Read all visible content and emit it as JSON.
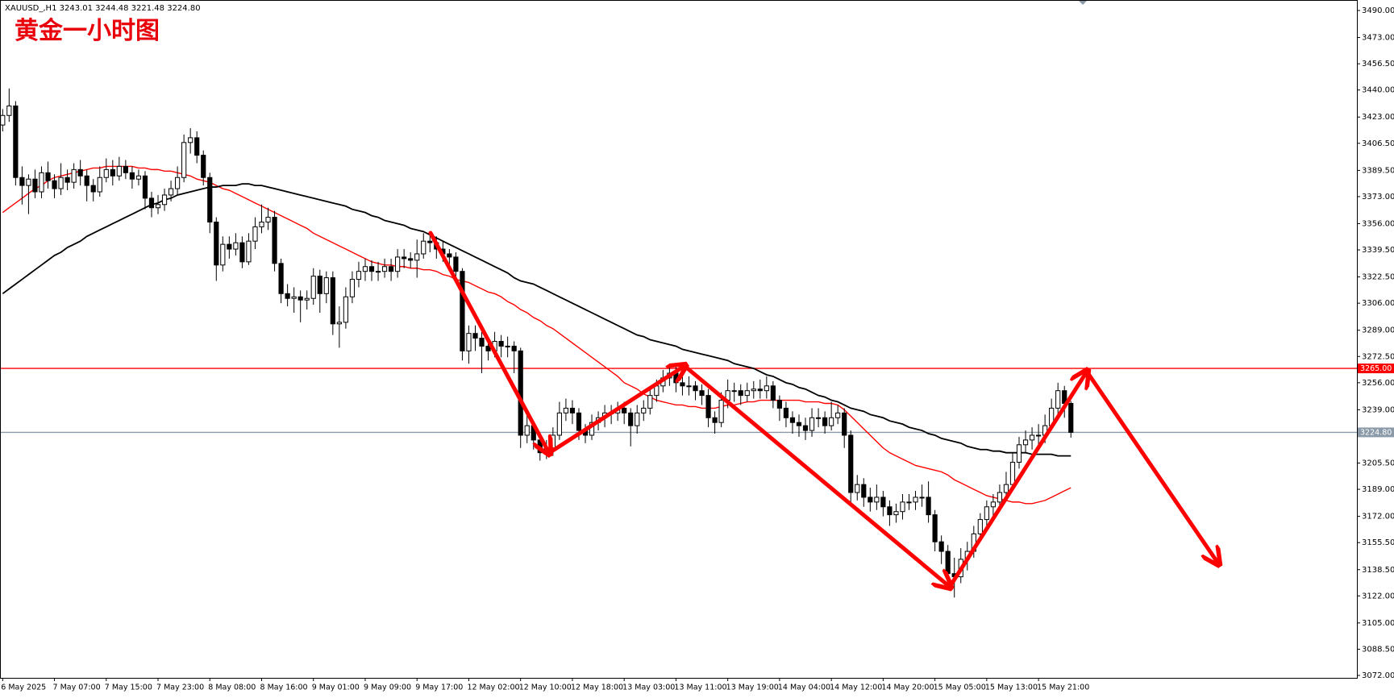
{
  "chart_data": {
    "type": "candlestick",
    "header": "XAUUSD_,H1  3243.01 3244.48 3221.48 3224.80",
    "annotation": "黄金一小时图",
    "categories": [
      "6 May 2025",
      null,
      null,
      null,
      null,
      null,
      null,
      null,
      "7 May 07:00",
      null,
      null,
      null,
      null,
      null,
      null,
      null,
      "7 May 15:00",
      null,
      null,
      null,
      null,
      null,
      null,
      null,
      "7 May 23:00",
      null,
      null,
      null,
      null,
      null,
      null,
      null,
      "8 May 08:00",
      null,
      null,
      null,
      null,
      null,
      null,
      null,
      "8 May 16:00",
      null,
      null,
      null,
      null,
      null,
      null,
      null,
      "9 May 01:00",
      null,
      null,
      null,
      null,
      null,
      null,
      null,
      "9 May 09:00",
      null,
      null,
      null,
      null,
      null,
      null,
      null,
      "9 May 17:00",
      null,
      null,
      null,
      null,
      null,
      null,
      null,
      "12 May 02:00",
      null,
      null,
      null,
      null,
      null,
      null,
      null,
      "12 May 10:00",
      null,
      null,
      null,
      null,
      null,
      null,
      null,
      "12 May 18:00",
      null,
      null,
      null,
      null,
      null,
      null,
      null,
      "13 May 03:00",
      null,
      null,
      null,
      null,
      null,
      null,
      null,
      "13 May 11:00",
      null,
      null,
      null,
      null,
      null,
      null,
      null,
      "13 May 19:00",
      null,
      null,
      null,
      null,
      null,
      null,
      null,
      "14 May 04:00",
      null,
      null,
      null,
      null,
      null,
      null,
      null,
      "14 May 12:00",
      null,
      null,
      null,
      null,
      null,
      null,
      null,
      "14 May 20:00",
      null,
      null,
      null,
      null,
      null,
      null,
      null,
      "15 May 05:00",
      null,
      null,
      null,
      null,
      null,
      null,
      null,
      "15 May 13:00",
      null,
      null,
      null,
      null,
      null,
      null,
      null,
      "15 May 21:00",
      null,
      null,
      null,
      null,
      null
    ],
    "open": [
      3418,
      3424,
      3430,
      3385,
      3380,
      3384,
      3376,
      3388,
      3383,
      3378,
      3385,
      3382,
      3390,
      3386,
      3380,
      3376,
      3385,
      3390,
      3386,
      3392,
      3388,
      3384,
      3386,
      3372,
      3366,
      3368,
      3374,
      3378,
      3385,
      3407,
      3410,
      3399,
      3385,
      3357,
      3330,
      3343,
      3340,
      3344,
      3332,
      3345,
      3354,
      3357,
      3360,
      3331,
      3312,
      3309,
      3310,
      3308,
      3309,
      3323,
      3312,
      3322,
      3293,
      3294,
      3310,
      3321,
      3326,
      3329,
      3326,
      3326,
      3329,
      3326,
      3335,
      3334,
      3333,
      3337,
      3345,
      3344,
      3340,
      3337,
      3335,
      3326,
      3276,
      3287,
      3284,
      3279,
      3276,
      3282,
      3279,
      3279,
      3276,
      3223,
      3229,
      3220,
      3212,
      3215,
      3223,
      3237,
      3240,
      3237,
      3226,
      3223,
      3231,
      3234,
      3237,
      3237,
      3240,
      3237,
      3229,
      3237,
      3240,
      3248,
      3254,
      3259,
      3262,
      3256,
      3254,
      3254,
      3251,
      3248,
      3234,
      3231,
      3245,
      3251,
      3251,
      3248,
      3251,
      3252,
      3251,
      3254,
      3245,
      3240,
      3234,
      3231,
      3229,
      3226,
      3234,
      3234,
      3229,
      3234,
      3237,
      3223,
      3187,
      3192,
      3184,
      3181,
      3184,
      3178,
      3173,
      3175,
      3181,
      3181,
      3184,
      3184,
      3173,
      3156,
      3150,
      3136,
      3134,
      3145,
      3150,
      3161,
      3170,
      3178,
      3181,
      3187,
      3192,
      3206,
      3217,
      3220,
      3223,
      3223,
      3229,
      3240,
      3251,
      3243.01
    ],
    "high": [
      3428,
      3441,
      3433,
      3392,
      3387,
      3390,
      3392,
      3395,
      3387,
      3394,
      3390,
      3394,
      3396,
      3390,
      3384,
      3392,
      3397,
      3396,
      3398,
      3396,
      3392,
      3390,
      3389,
      3376,
      3374,
      3378,
      3383,
      3392,
      3412,
      3416,
      3414,
      3402,
      3388,
      3360,
      3348,
      3348,
      3350,
      3348,
      3350,
      3360,
      3368,
      3366,
      3364,
      3334,
      3318,
      3316,
      3314,
      3314,
      3328,
      3327,
      3326,
      3326,
      3304,
      3316,
      3326,
      3332,
      3334,
      3333,
      3332,
      3334,
      3334,
      3340,
      3340,
      3338,
      3346,
      3350,
      3351,
      3348,
      3345,
      3340,
      3338,
      3328,
      3292,
      3292,
      3288,
      3284,
      3288,
      3286,
      3285,
      3282,
      3278,
      3236,
      3232,
      3224,
      3220,
      3228,
      3244,
      3246,
      3245,
      3240,
      3230,
      3236,
      3238,
      3242,
      3242,
      3244,
      3244,
      3240,
      3242,
      3245,
      3252,
      3258,
      3264,
      3268,
      3266,
      3260,
      3260,
      3257,
      3255,
      3252,
      3238,
      3250,
      3258,
      3256,
      3255,
      3256,
      3257,
      3258,
      3260,
      3257,
      3248,
      3244,
      3238,
      3236,
      3234,
      3240,
      3240,
      3238,
      3244,
      3242,
      3240,
      3226,
      3198,
      3196,
      3190,
      3192,
      3188,
      3182,
      3180,
      3186,
      3186,
      3188,
      3192,
      3194,
      3176,
      3160,
      3154,
      3146,
      3152,
      3156,
      3166,
      3174,
      3182,
      3186,
      3192,
      3200,
      3212,
      3222,
      3226,
      3228,
      3230,
      3236,
      3246,
      3256,
      3254,
      3244.48
    ],
    "low": [
      3414,
      3420,
      3380,
      3368,
      3362,
      3372,
      3372,
      3378,
      3372,
      3374,
      3377,
      3378,
      3380,
      3370,
      3370,
      3373,
      3382,
      3380,
      3383,
      3384,
      3378,
      3380,
      3365,
      3360,
      3362,
      3364,
      3370,
      3374,
      3382,
      3400,
      3394,
      3380,
      3350,
      3320,
      3326,
      3334,
      3336,
      3328,
      3330,
      3340,
      3350,
      3352,
      3326,
      3306,
      3304,
      3300,
      3294,
      3302,
      3305,
      3300,
      3306,
      3286,
      3278,
      3290,
      3306,
      3316,
      3320,
      3320,
      3320,
      3322,
      3320,
      3322,
      3328,
      3328,
      3322,
      3334,
      3338,
      3334,
      3332,
      3330,
      3320,
      3270,
      3268,
      3276,
      3262,
      3270,
      3272,
      3272,
      3272,
      3262,
      3215,
      3218,
      3214,
      3207,
      3208,
      3210,
      3220,
      3232,
      3230,
      3220,
      3218,
      3220,
      3226,
      3228,
      3230,
      3232,
      3230,
      3216,
      3224,
      3232,
      3236,
      3244,
      3250,
      3254,
      3250,
      3248,
      3248,
      3245,
      3242,
      3228,
      3224,
      3228,
      3240,
      3244,
      3242,
      3244,
      3246,
      3246,
      3246,
      3240,
      3232,
      3228,
      3224,
      3222,
      3220,
      3222,
      3228,
      3224,
      3226,
      3230,
      3215,
      3180,
      3182,
      3178,
      3175,
      3176,
      3172,
      3166,
      3168,
      3170,
      3176,
      3176,
      3178,
      3168,
      3150,
      3142,
      3128,
      3121,
      3130,
      3138,
      3146,
      3156,
      3166,
      3172,
      3176,
      3182,
      3188,
      3202,
      3212,
      3214,
      3216,
      3218,
      3226,
      3236,
      3234,
      3221.48
    ],
    "close": [
      3424,
      3430,
      3385,
      3380,
      3384,
      3376,
      3388,
      3383,
      3378,
      3385,
      3382,
      3390,
      3386,
      3380,
      3376,
      3385,
      3390,
      3386,
      3392,
      3388,
      3384,
      3386,
      3372,
      3366,
      3368,
      3374,
      3378,
      3385,
      3407,
      3410,
      3399,
      3385,
      3357,
      3330,
      3343,
      3340,
      3344,
      3332,
      3345,
      3354,
      3357,
      3360,
      3331,
      3312,
      3309,
      3310,
      3308,
      3309,
      3323,
      3312,
      3322,
      3293,
      3294,
      3310,
      3321,
      3326,
      3329,
      3326,
      3326,
      3329,
      3326,
      3335,
      3334,
      3333,
      3337,
      3345,
      3344,
      3340,
      3337,
      3335,
      3326,
      3276,
      3287,
      3284,
      3279,
      3276,
      3282,
      3279,
      3279,
      3276,
      3223,
      3229,
      3220,
      3212,
      3215,
      3223,
      3237,
      3240,
      3237,
      3226,
      3223,
      3231,
      3234,
      3237,
      3237,
      3240,
      3237,
      3229,
      3237,
      3240,
      3248,
      3254,
      3259,
      3262,
      3256,
      3254,
      3254,
      3251,
      3248,
      3234,
      3231,
      3245,
      3251,
      3251,
      3248,
      3251,
      3252,
      3251,
      3254,
      3245,
      3240,
      3234,
      3231,
      3229,
      3226,
      3234,
      3234,
      3229,
      3234,
      3237,
      3223,
      3187,
      3192,
      3184,
      3181,
      3184,
      3178,
      3173,
      3175,
      3181,
      3181,
      3184,
      3184,
      3173,
      3156,
      3150,
      3136,
      3134,
      3145,
      3150,
      3161,
      3170,
      3178,
      3181,
      3187,
      3192,
      3206,
      3217,
      3220,
      3223,
      3223,
      3229,
      3240,
      3251,
      3243,
      3224.8
    ],
    "series": [
      {
        "color": "#ff0000",
        "values": [
          3363,
          3366,
          3369,
          3372,
          3375,
          3378,
          3380,
          3383,
          3385,
          3386,
          3387,
          3388,
          3389,
          3390,
          3391,
          3391,
          3392,
          3392,
          3392,
          3392,
          3392,
          3391,
          3391,
          3390,
          3390,
          3389,
          3389,
          3388,
          3387,
          3386,
          3384,
          3383,
          3382,
          3380,
          3378,
          3377,
          3375,
          3373,
          3371,
          3369,
          3367,
          3365,
          3363,
          3361,
          3359,
          3357,
          3355,
          3353,
          3350,
          3348,
          3346,
          3344,
          3342,
          3340,
          3338,
          3336,
          3334,
          3332,
          3331,
          3330,
          3330,
          3329,
          3329,
          3328,
          3328,
          3327,
          3327,
          3326,
          3324,
          3323,
          3321,
          3320,
          3319,
          3317,
          3315,
          3313,
          3312,
          3310,
          3307,
          3305,
          3302,
          3300,
          3297,
          3295,
          3292,
          3290,
          3287,
          3284,
          3281,
          3278,
          3275,
          3272,
          3269,
          3266,
          3263,
          3260,
          3256,
          3254,
          3252,
          3249,
          3247,
          3245,
          3244,
          3243,
          3242,
          3242,
          3241,
          3241,
          3240,
          3240,
          3240,
          3241,
          3242,
          3242,
          3243,
          3244,
          3244,
          3245,
          3245,
          3245,
          3245,
          3245,
          3245,
          3245,
          3244,
          3244,
          3244,
          3243,
          3243,
          3242,
          3239,
          3235,
          3231,
          3227,
          3223,
          3219,
          3215,
          3212,
          3210,
          3208,
          3206,
          3204,
          3203,
          3202,
          3201,
          3200,
          3198,
          3195,
          3193,
          3191,
          3189,
          3187,
          3185,
          3184,
          3183,
          3182,
          3181,
          3181,
          3180,
          3180,
          3181,
          3182,
          3184,
          3186,
          3188,
          3190
        ]
      },
      {
        "color": "#000000",
        "values": [
          3312,
          3315,
          3318,
          3321,
          3324,
          3327,
          3330,
          3333,
          3336,
          3338,
          3341,
          3343,
          3345,
          3348,
          3350,
          3352,
          3354,
          3356,
          3358,
          3360,
          3362,
          3364,
          3366,
          3368,
          3369,
          3371,
          3372,
          3374,
          3375,
          3376,
          3377,
          3378,
          3379,
          3379,
          3380,
          3380,
          3380,
          3381,
          3381,
          3380,
          3380,
          3379,
          3378,
          3377,
          3376,
          3375,
          3374,
          3373,
          3372,
          3371,
          3370,
          3369,
          3368,
          3367,
          3365,
          3364,
          3363,
          3361,
          3360,
          3358,
          3357,
          3356,
          3355,
          3353,
          3352,
          3351,
          3349,
          3347,
          3345,
          3343,
          3341,
          3339,
          3337,
          3335,
          3333,
          3331,
          3329,
          3327,
          3325,
          3322,
          3320,
          3319,
          3318,
          3316,
          3314,
          3312,
          3310,
          3308,
          3306,
          3304,
          3302,
          3300,
          3298,
          3296,
          3294,
          3292,
          3290,
          3288,
          3286,
          3285,
          3283,
          3282,
          3281,
          3280,
          3279,
          3277,
          3276,
          3275,
          3274,
          3273,
          3272,
          3271,
          3270,
          3268,
          3267,
          3266,
          3265,
          3263,
          3261,
          3260,
          3258,
          3256,
          3255,
          3253,
          3252,
          3250,
          3248,
          3247,
          3245,
          3244,
          3242,
          3240,
          3239,
          3238,
          3236,
          3235,
          3234,
          3232,
          3231,
          3230,
          3228,
          3227,
          3226,
          3224,
          3223,
          3221,
          3220,
          3219,
          3218,
          3216,
          3215,
          3214,
          3214,
          3213,
          3213,
          3212,
          3212,
          3212,
          3212,
          3211,
          3211,
          3211,
          3211,
          3210,
          3210,
          3210
        ]
      }
    ],
    "hlines": [
      {
        "value": 3265,
        "label": "3265.00",
        "color": "#ff0000"
      },
      {
        "value": 3224.8,
        "label": "3224.80",
        "color": "#8a9aa8"
      }
    ],
    "candle_colors": {
      "up": "#ffffff",
      "down": "#000000",
      "outline": "#000000"
    },
    "ylim": [
      3072,
      3490
    ],
    "yticks": [
      {
        "value": 3490,
        "label": "3490.00"
      },
      {
        "value": 3473,
        "label": "3473.00"
      },
      {
        "value": 3456.5,
        "label": "3456.50"
      },
      {
        "value": 3440,
        "label": "3440.00"
      },
      {
        "value": 3423,
        "label": "3423.00"
      },
      {
        "value": 3406.5,
        "label": "3406.50"
      },
      {
        "value": 3389.5,
        "label": "3389.50"
      },
      {
        "value": 3373,
        "label": "3373.00"
      },
      {
        "value": 3356,
        "label": "3356.00"
      },
      {
        "value": 3339.5,
        "label": "3339.50"
      },
      {
        "value": 3322.5,
        "label": "3322.50"
      },
      {
        "value": 3306,
        "label": "3306.00"
      },
      {
        "value": 3289,
        "label": "3289.00"
      },
      {
        "value": 3272.5,
        "label": "3272.50"
      },
      {
        "value": 3256,
        "label": "3256.00"
      },
      {
        "value": 3239,
        "label": "3239.00"
      },
      {
        "value": 3205.5,
        "label": "3205.50"
      },
      {
        "value": 3189,
        "label": "3189.00"
      },
      {
        "value": 3172,
        "label": "3172.00"
      },
      {
        "value": 3155.5,
        "label": "3155.50"
      },
      {
        "value": 3138.5,
        "label": "3138.50"
      },
      {
        "value": 3122,
        "label": "3122.00"
      },
      {
        "value": 3105,
        "label": "3105.00"
      },
      {
        "value": 3088.5,
        "label": "3088.50"
      },
      {
        "value": 3072,
        "label": "3072.00"
      }
    ]
  }
}
